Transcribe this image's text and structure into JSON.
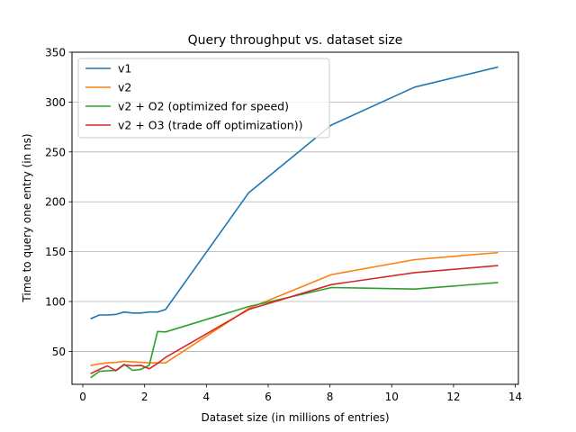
{
  "chart_data": {
    "type": "line",
    "title": "Query throughput vs. dataset size",
    "xlabel": "Dataset size (in millions of entries)",
    "ylabel": "Time to query one entry (in ns)",
    "xlim": [
      -0.35,
      14.1
    ],
    "ylim": [
      17,
      350
    ],
    "xticks": [
      0,
      2,
      4,
      6,
      8,
      10,
      12,
      14
    ],
    "yticks": [
      50,
      100,
      150,
      200,
      250,
      300,
      350
    ],
    "grid": "horizontal",
    "legend_position": "top-left",
    "series": [
      {
        "name": "v1",
        "color": "#1f77b4",
        "x": [
          0.27,
          0.54,
          0.8,
          1.07,
          1.34,
          1.61,
          1.88,
          2.15,
          2.42,
          2.68,
          5.37,
          8.05,
          10.74,
          13.42
        ],
        "y": [
          83,
          86.5,
          86.5,
          87,
          89.5,
          88.5,
          88.5,
          89.5,
          89.5,
          92,
          209,
          277,
          315,
          335
        ]
      },
      {
        "name": "v2",
        "color": "#ff7f0e",
        "x": [
          0.27,
          0.54,
          0.8,
          1.07,
          1.34,
          1.61,
          1.88,
          2.15,
          2.42,
          2.68,
          5.37,
          8.05,
          10.74,
          13.42
        ],
        "y": [
          36,
          37.5,
          38.5,
          39,
          40,
          39.5,
          39,
          38.5,
          38.5,
          38.5,
          93,
          127,
          142,
          149
        ]
      },
      {
        "name": "v2 + O2 (optimized for speed)",
        "color": "#2ca02c",
        "x": [
          0.27,
          0.54,
          0.8,
          1.07,
          1.34,
          1.61,
          1.88,
          2.15,
          2.42,
          2.68,
          5.37,
          8.05,
          10.74,
          13.42
        ],
        "y": [
          24,
          30,
          30.5,
          31,
          37,
          31,
          32,
          36,
          70,
          69.5,
          95,
          114,
          112.5,
          119
        ]
      },
      {
        "name": "v2 + O3 (trade off optimization))",
        "color": "#d62728",
        "x": [
          0.27,
          0.54,
          0.8,
          1.07,
          1.34,
          1.61,
          1.88,
          2.15,
          2.42,
          2.68,
          5.37,
          8.05,
          10.74,
          13.42
        ],
        "y": [
          28,
          32,
          35.5,
          30.5,
          36.5,
          35.5,
          36,
          32.5,
          38,
          44,
          92,
          117,
          129,
          136
        ]
      }
    ]
  }
}
